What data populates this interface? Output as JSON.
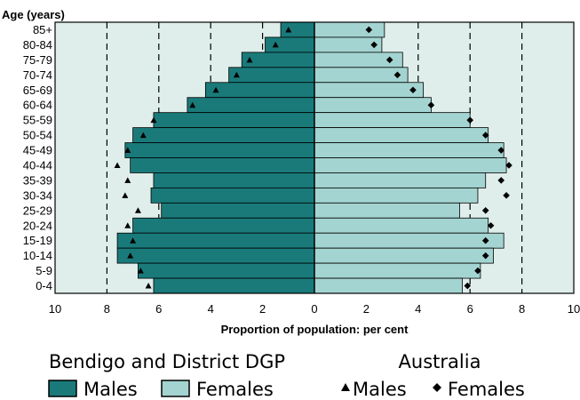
{
  "chart_data": {
    "type": "bar",
    "subtype": "population-pyramid",
    "ylabel": "Age (years)",
    "xlabel": "Proportion of population: per cent",
    "xlim": [
      -10,
      10
    ],
    "x_ticks": [
      "10",
      "8",
      "6",
      "4",
      "2",
      "0",
      "2",
      "4",
      "6",
      "8",
      "10"
    ],
    "categories": [
      "85+",
      "80-84",
      "75-79",
      "70-74",
      "65-69",
      "60-64",
      "55-59",
      "50-54",
      "45-49",
      "40-44",
      "35-39",
      "30-34",
      "25-29",
      "20-24",
      "15-19",
      "10-14",
      "5-9",
      "0-4"
    ],
    "series": [
      {
        "name": "Males",
        "group": "Bendigo and District DGP",
        "kind": "bar",
        "color": "#1a7a7a",
        "values": [
          1.3,
          1.9,
          2.8,
          3.3,
          4.2,
          4.9,
          6.2,
          7.0,
          7.3,
          7.1,
          6.2,
          6.3,
          5.9,
          7.0,
          7.6,
          7.6,
          6.8,
          6.2
        ]
      },
      {
        "name": "Females",
        "group": "Bendigo and District DGP",
        "kind": "bar",
        "color": "#a3d4d1",
        "values": [
          2.7,
          2.6,
          3.4,
          3.6,
          4.2,
          4.5,
          6.0,
          6.7,
          7.3,
          7.4,
          6.6,
          6.3,
          5.6,
          6.7,
          7.3,
          6.9,
          6.4,
          5.7
        ]
      },
      {
        "name": "Males",
        "group": "Australia",
        "kind": "marker",
        "marker": "triangle",
        "values": [
          1.0,
          1.5,
          2.5,
          3.0,
          3.8,
          4.7,
          6.2,
          6.6,
          7.2,
          7.6,
          7.2,
          7.3,
          6.8,
          7.2,
          7.0,
          7.1,
          6.7,
          6.4
        ]
      },
      {
        "name": "Females",
        "group": "Australia",
        "kind": "marker",
        "marker": "diamond",
        "values": [
          2.1,
          2.3,
          2.9,
          3.2,
          3.8,
          4.5,
          6.0,
          6.6,
          7.2,
          7.5,
          7.2,
          7.4,
          6.6,
          6.8,
          6.6,
          6.6,
          6.3,
          5.9
        ]
      }
    ],
    "grid": "dashed vertical at 2, 4, 6, 8 each side",
    "background": "#dfeeeb",
    "legend": {
      "placement": "bottom",
      "group1_title": "Bendigo and District DGP",
      "group2_title": "Australia",
      "items": [
        "Males",
        "Females",
        "Males",
        "Females"
      ]
    }
  }
}
